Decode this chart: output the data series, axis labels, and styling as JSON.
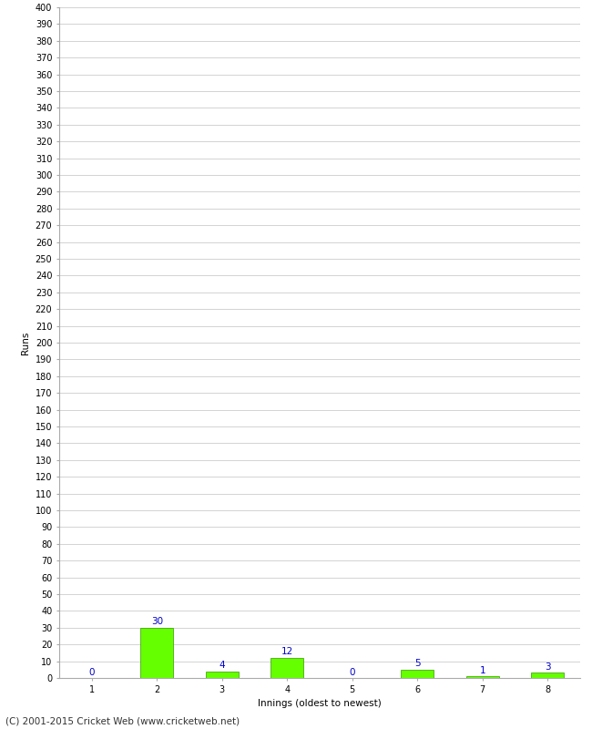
{
  "categories": [
    1,
    2,
    3,
    4,
    5,
    6,
    7,
    8
  ],
  "values": [
    0,
    30,
    4,
    12,
    0,
    5,
    1,
    3
  ],
  "bar_color": "#66ff00",
  "bar_edge_color": "#339900",
  "value_label_color": "#0000cc",
  "xlabel": "Innings (oldest to newest)",
  "ylabel": "Runs",
  "ylim": [
    0,
    400
  ],
  "ytick_step": 10,
  "footer": "(C) 2001-2015 Cricket Web (www.cricketweb.net)",
  "background_color": "#ffffff",
  "grid_color": "#cccccc",
  "label_fontsize": 7.5,
  "value_fontsize": 7.5,
  "axis_fontsize": 7,
  "footer_fontsize": 7.5
}
